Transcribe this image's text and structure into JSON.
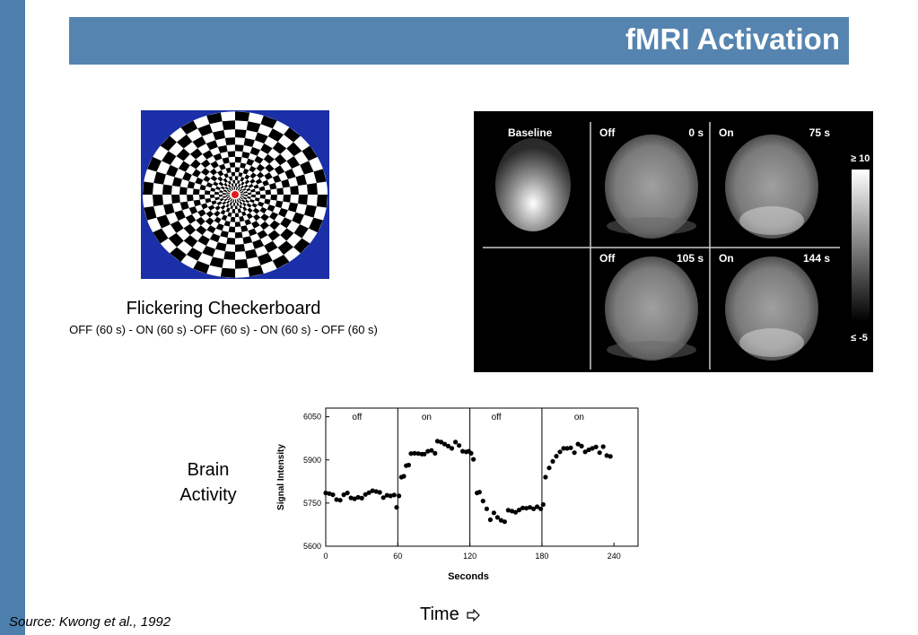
{
  "slide": {
    "title": "fMRI Activation",
    "stimulus_title": "Flickering Checkerboard",
    "stimulus_sequence": "OFF (60 s) - ON (60 s) -OFF (60 s) - ON (60 s) - OFF (60 s)",
    "y_side_label_line1": "Brain",
    "y_side_label_line2": "Activity",
    "time_label": "Time",
    "time_arrow_icon": "right-arrow-outline",
    "source": "Source: Kwong et al., 1992",
    "accent_color": "#5584b0"
  },
  "brain_images": {
    "panels": [
      {
        "label": "Baseline",
        "time": ""
      },
      {
        "label": "Off",
        "time": "0 s"
      },
      {
        "label": "On",
        "time": "75 s"
      },
      {
        "label": "Off",
        "time": "105 s"
      },
      {
        "label": "On",
        "time": "144 s"
      }
    ],
    "scale_max": "≥ 10",
    "scale_min": "≤ -5"
  },
  "chart_data": {
    "type": "scatter",
    "xlabel": "Seconds",
    "ylabel": "Signal Intensity",
    "xlim": [
      0,
      260
    ],
    "ylim": [
      5600,
      6080
    ],
    "xticks": [
      0,
      60,
      120,
      180,
      240
    ],
    "yticks": [
      5600,
      5750,
      5900,
      6050
    ],
    "xtick_labels": [
      "0",
      "60",
      "120",
      "180",
      "240"
    ],
    "ytick_labels": [
      "5600",
      "5750",
      "5900",
      "6050"
    ],
    "period_lines": [
      60,
      120,
      180
    ],
    "period_labels": [
      {
        "text": "off",
        "x": 26
      },
      {
        "text": "on",
        "x": 84
      },
      {
        "text": "off",
        "x": 142
      },
      {
        "text": "on",
        "x": 211
      }
    ],
    "points": [
      [
        0,
        5785
      ],
      [
        3,
        5783
      ],
      [
        6,
        5779
      ],
      [
        9,
        5762
      ],
      [
        12,
        5760
      ],
      [
        15,
        5779
      ],
      [
        18,
        5785
      ],
      [
        21,
        5768
      ],
      [
        24,
        5765
      ],
      [
        27,
        5770
      ],
      [
        30,
        5767
      ],
      [
        33,
        5780
      ],
      [
        36,
        5786
      ],
      [
        39,
        5793
      ],
      [
        42,
        5790
      ],
      [
        45,
        5787
      ],
      [
        48,
        5769
      ],
      [
        51,
        5777
      ],
      [
        54,
        5775
      ],
      [
        57,
        5778
      ],
      [
        59,
        5735
      ],
      [
        61,
        5775
      ],
      [
        63,
        5840
      ],
      [
        65,
        5843
      ],
      [
        67,
        5880
      ],
      [
        69,
        5882
      ],
      [
        71,
        5922
      ],
      [
        74,
        5923
      ],
      [
        77,
        5922
      ],
      [
        80,
        5920
      ],
      [
        82,
        5920
      ],
      [
        85,
        5930
      ],
      [
        88,
        5933
      ],
      [
        91,
        5923
      ],
      [
        93,
        5965
      ],
      [
        96,
        5962
      ],
      [
        99,
        5955
      ],
      [
        102,
        5948
      ],
      [
        105,
        5940
      ],
      [
        108,
        5962
      ],
      [
        111,
        5950
      ],
      [
        114,
        5930
      ],
      [
        117,
        5928
      ],
      [
        119,
        5930
      ],
      [
        121,
        5923
      ],
      [
        123,
        5902
      ],
      [
        126,
        5785
      ],
      [
        128,
        5788
      ],
      [
        131,
        5757
      ],
      [
        134,
        5730
      ],
      [
        137,
        5692
      ],
      [
        140,
        5716
      ],
      [
        143,
        5700
      ],
      [
        146,
        5690
      ],
      [
        149,
        5685
      ],
      [
        152,
        5725
      ],
      [
        155,
        5722
      ],
      [
        158,
        5718
      ],
      [
        161,
        5726
      ],
      [
        164,
        5733
      ],
      [
        167,
        5732
      ],
      [
        170,
        5735
      ],
      [
        173,
        5730
      ],
      [
        176,
        5737
      ],
      [
        179,
        5730
      ],
      [
        181,
        5745
      ],
      [
        183,
        5840
      ],
      [
        186,
        5872
      ],
      [
        189,
        5895
      ],
      [
        192,
        5913
      ],
      [
        195,
        5928
      ],
      [
        198,
        5940
      ],
      [
        201,
        5940
      ],
      [
        204,
        5942
      ],
      [
        207,
        5925
      ],
      [
        210,
        5955
      ],
      [
        213,
        5948
      ],
      [
        216,
        5928
      ],
      [
        219,
        5935
      ],
      [
        222,
        5940
      ],
      [
        225,
        5945
      ],
      [
        228,
        5925
      ],
      [
        231,
        5946
      ],
      [
        234,
        5915
      ],
      [
        237,
        5912
      ]
    ]
  }
}
